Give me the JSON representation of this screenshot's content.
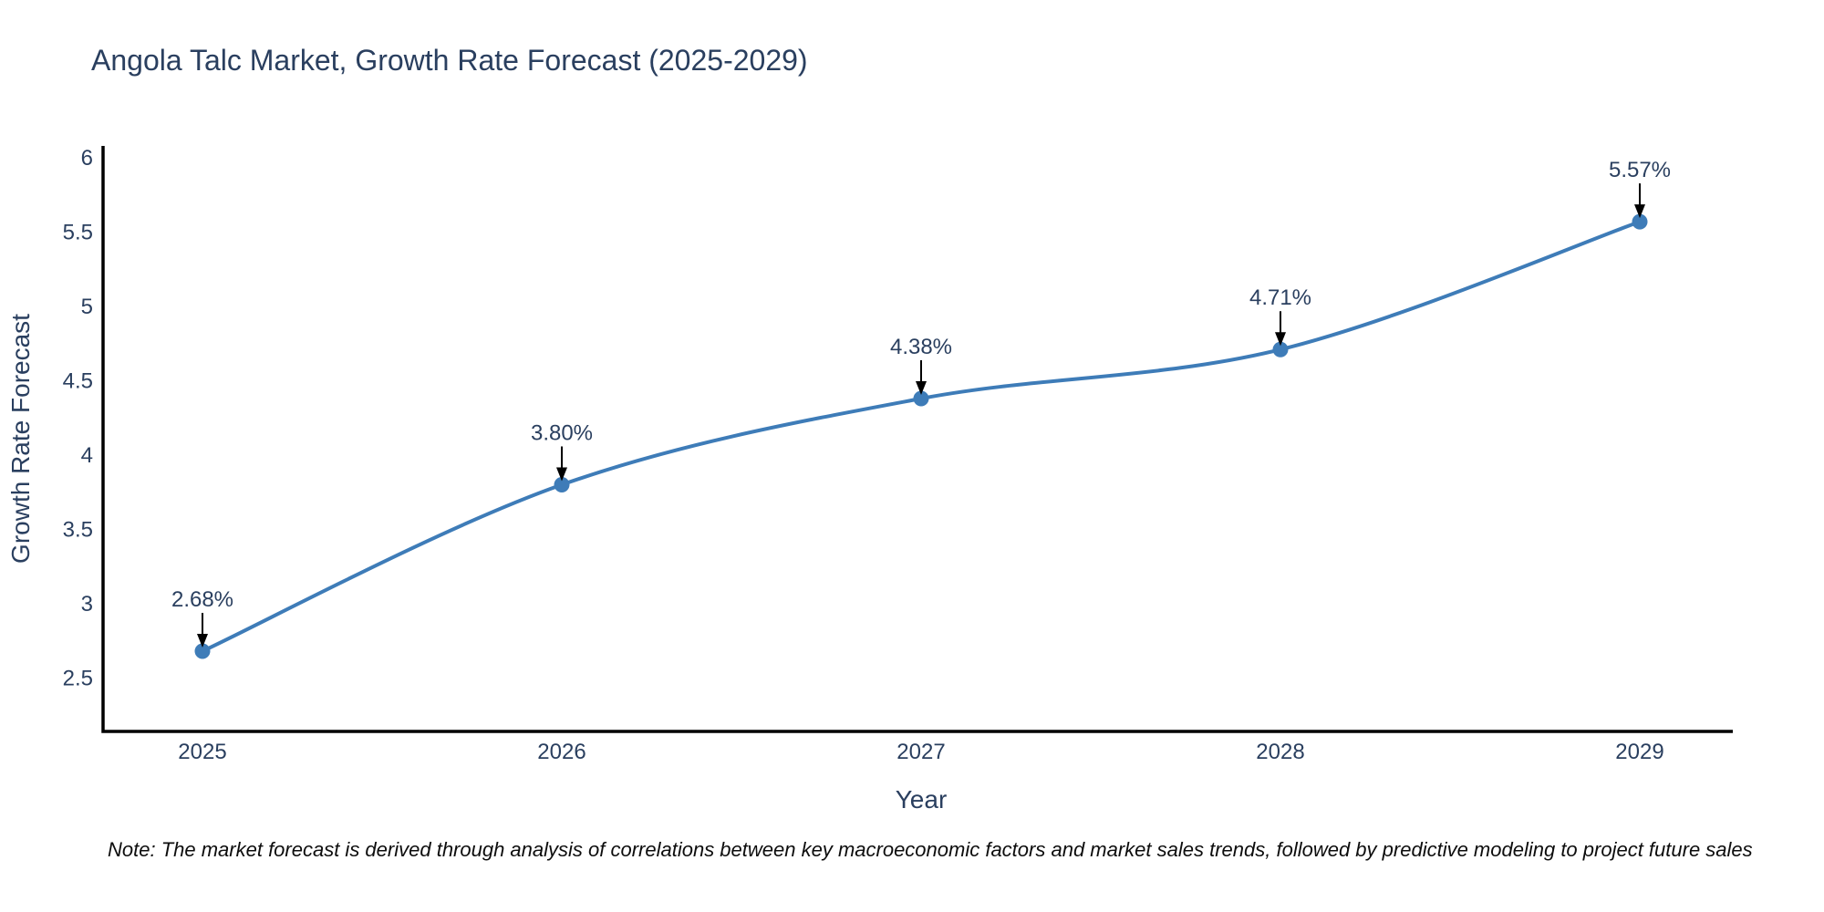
{
  "chart_data": {
    "type": "line",
    "line_shape": "spline",
    "title": "Angola Talc Market, Growth Rate Forecast (2025-2029)",
    "xlabel": "Year",
    "ylabel": "Growth Rate Forecast",
    "categories": [
      "2025",
      "2026",
      "2027",
      "2028",
      "2029"
    ],
    "series": [
      {
        "name": "Growth Rate Forecast",
        "values": [
          2.68,
          3.8,
          4.38,
          4.71,
          5.57
        ],
        "point_labels": [
          "2.68%",
          "3.80%",
          "4.38%",
          "4.71%",
          "5.57%"
        ]
      }
    ],
    "ylim": [
      2.14,
      6.08
    ],
    "yticks": {
      "values": [
        6,
        5.5,
        5,
        4.5,
        4,
        3.5,
        3,
        2.5
      ],
      "labels": [
        "6",
        "5.5",
        "5",
        "4.5",
        "4",
        "3.5",
        "3",
        "2.5"
      ]
    },
    "grid": false,
    "legend": "none",
    "annotations_have_arrows": true,
    "colors": {
      "line": "#3E7CB8",
      "marker": "#3E7CB8",
      "arrow": "#000000",
      "text": "#2a3f5f",
      "axis_line": "#000000",
      "note_text": "#0d0d0d",
      "background": "#ffffff"
    }
  },
  "note": {
    "text": "Note: The market forecast is derived through analysis of correlations between key macroeconomic factors and market sales trends, followed by predictive modeling to project future sales"
  }
}
